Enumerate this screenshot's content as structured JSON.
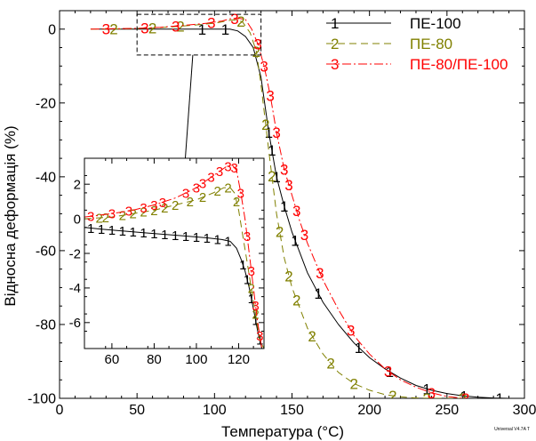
{
  "chart_data": [
    {
      "panel": "main",
      "type": "line",
      "xlabel": "Температура (°C)",
      "ylabel": "Відносна деформація (%)",
      "xlim": [
        0,
        300
      ],
      "ylim": [
        -100,
        5
      ],
      "xticks": [
        0,
        50,
        100,
        150,
        200,
        250,
        300
      ],
      "yticks": [
        0,
        -20,
        -40,
        -60,
        -80,
        -100
      ],
      "grid": false,
      "legend_position": "top-right",
      "series": [
        {
          "name": "ПЕ-100",
          "marker": "1",
          "color": "#000000",
          "dash": "",
          "x": [
            25,
            40,
            55,
            70,
            85,
            100,
            110,
            115,
            120,
            125,
            130,
            135,
            140,
            145,
            150,
            160,
            170,
            180,
            190,
            200,
            210,
            220,
            230,
            240,
            250,
            260,
            270,
            280,
            290
          ],
          "y": [
            0,
            0,
            0,
            0,
            0,
            0,
            0,
            -0.5,
            -2,
            -5,
            -13,
            -28,
            -40,
            -48,
            -55,
            -66,
            -74,
            -80,
            -85,
            -89,
            -92,
            -94.5,
            -96.5,
            -97.8,
            -98.7,
            -99.3,
            -99.7,
            -99.9,
            -100
          ],
          "marker_x": [
            92,
            107,
            135,
            137,
            140,
            145,
            152,
            167,
            193,
            213,
            237,
            261,
            284
          ]
        },
        {
          "name": "ПЕ-80",
          "marker": "2",
          "color": "#808000",
          "dash": "8,5",
          "x": [
            20,
            30,
            45,
            60,
            75,
            90,
            100,
            105,
            110,
            113,
            118,
            123,
            127,
            130,
            135,
            140,
            145,
            150,
            160,
            170,
            180,
            190,
            200,
            210,
            220,
            230,
            240,
            250,
            260
          ],
          "y": [
            0,
            0,
            0.1,
            0.3,
            0.7,
            1.2,
            1.6,
            2.0,
            2.4,
            2.5,
            2.0,
            -1,
            -6,
            -15,
            -33,
            -50,
            -62,
            -70,
            -81,
            -88,
            -93,
            -96,
            -97.8,
            -99,
            -99.6,
            -99.9,
            -100,
            -100,
            -100
          ],
          "marker_x": [
            35,
            60,
            78,
            117,
            127,
            133,
            137,
            142,
            148,
            153,
            163,
            175,
            190,
            215,
            237,
            260
          ]
        },
        {
          "name": "ПЕ-80/ПЕ-100",
          "marker": "3",
          "color": "#ff0000",
          "dash": "10,3,2,3",
          "x": [
            20,
            35,
            50,
            65,
            80,
            95,
            105,
            110,
            115,
            120,
            124,
            128,
            132,
            136,
            140,
            145,
            150,
            155,
            160,
            170,
            180,
            190,
            200,
            210,
            220,
            230,
            240,
            250,
            260
          ],
          "y": [
            0,
            0.1,
            0.2,
            0.5,
            1.0,
            1.6,
            2.2,
            2.8,
            3.0,
            2.6,
            0,
            -4,
            -10,
            -18,
            -28,
            -38,
            -45,
            -52,
            -58,
            -68,
            -76,
            -83,
            -88,
            -92,
            -95,
            -97,
            -98.5,
            -99.5,
            -100
          ],
          "marker_x": [
            30,
            55,
            75,
            98,
            113,
            128,
            132,
            136,
            140,
            145,
            148,
            153,
            158,
            168,
            188,
            212,
            240,
            262
          ]
        }
      ],
      "zoom_box": {
        "xlim": [
          50,
          130
        ],
        "ylim": [
          -7,
          4
        ]
      }
    },
    {
      "panel": "inset",
      "type": "line",
      "xlim": [
        47,
        132
      ],
      "ylim": [
        -7.5,
        3.5
      ],
      "xticks": [
        60,
        80,
        100,
        120
      ],
      "yticks": [
        2,
        0,
        -2,
        -4,
        -6
      ],
      "grid": false,
      "series": [
        {
          "name": "ПЕ-100",
          "marker": "1",
          "color": "#000000",
          "dash": "",
          "x": [
            47,
            55,
            65,
            75,
            85,
            95,
            105,
            112,
            116,
            119,
            121,
            123,
            125,
            127,
            129,
            131
          ],
          "y": [
            -0.5,
            -0.6,
            -0.7,
            -0.8,
            -0.9,
            -1.0,
            -1.1,
            -1.2,
            -1.3,
            -1.7,
            -2.3,
            -3.0,
            -4.0,
            -5.2,
            -6.5,
            -7.5
          ],
          "marker_x": [
            50,
            55,
            60,
            65,
            70,
            75,
            80,
            85,
            90,
            95,
            100,
            105,
            110,
            115,
            122,
            124,
            126,
            128,
            130
          ]
        },
        {
          "name": "ПЕ-80",
          "marker": "2",
          "color": "#808000",
          "dash": "8,5",
          "x": [
            47,
            60,
            70,
            80,
            90,
            100,
            108,
            113,
            116,
            118,
            120,
            122,
            124,
            126,
            128,
            130,
            132
          ],
          "y": [
            0,
            0.1,
            0.3,
            0.5,
            0.8,
            1.1,
            1.5,
            1.8,
            1.8,
            1.5,
            0.5,
            -1.0,
            -2.5,
            -4.0,
            -5.5,
            -7.0,
            -7.5
          ],
          "marker_x": [
            54,
            57,
            65,
            70,
            75,
            80,
            85,
            90,
            97,
            103,
            110,
            115,
            119,
            126,
            128
          ]
        },
        {
          "name": "ПЕ-80/ПЕ-100",
          "marker": "3",
          "color": "#ff0000",
          "dash": "10,3,2,3",
          "x": [
            47,
            60,
            70,
            80,
            90,
            100,
            108,
            114,
            117,
            119,
            121,
            123,
            125,
            127,
            129,
            131
          ],
          "y": [
            0.1,
            0.3,
            0.5,
            0.8,
            1.2,
            1.8,
            2.5,
            3.0,
            3.1,
            2.8,
            1.5,
            0,
            -2.0,
            -4.0,
            -6.0,
            -7.5
          ],
          "marker_x": [
            50,
            60,
            68,
            75,
            80,
            84,
            95,
            100,
            103,
            107,
            111,
            115,
            118,
            121,
            124,
            126,
            128,
            130
          ]
        }
      ]
    }
  ],
  "watermark": "Universal V4.7A T"
}
